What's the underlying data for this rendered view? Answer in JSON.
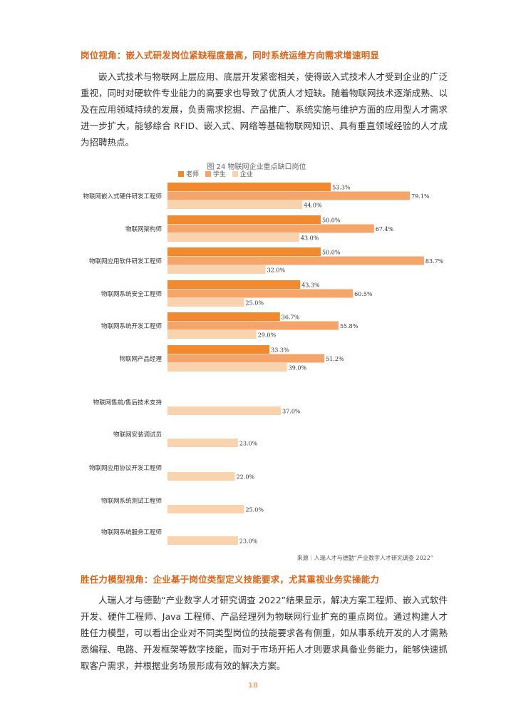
{
  "section1": {
    "heading": "岗位视角：嵌入式研发岗位紧缺程度最高，同时系统运维方向需求增速明显",
    "paragraph": "嵌入式技术与物联网上层应用、底层开发紧密相关，使得嵌入式技术人才受到企业的广泛重视，同时对硬软件专业能力的高要求也导致了优质人才短缺。随着物联网技术逐渐成熟、以及在应用领域持续的发展，负责需求挖掘、产品推广、系统实施与维护方面的应用型人才需求进一步扩大，能够综合 RFID、嵌入式、网络等基础物联网知识、具有垂直领域经验的人才成为招聘热点。"
  },
  "colors": {
    "teacher": "#f18a2e",
    "student": "#f5a46a",
    "company": "#f9d2ae",
    "accent": "#d9651b"
  },
  "chart_data": {
    "type": "bar",
    "orientation": "horizontal",
    "title": "图 24 物联网企业重点缺口岗位",
    "legend": [
      "老师",
      "学生",
      "企业"
    ],
    "categories": [
      "物联网嵌入式硬件研发工程师",
      "物联网架构师",
      "物联网应用软件研发工程师",
      "物联网系统安全工程师",
      "物联网系统开发工程师",
      "物联网产品经理",
      "物联网售前/售后技术支持",
      "物联网安装调试员",
      "物联网应用协议开发工程师",
      "物联网系统测试工程师",
      "物联网系统服务工程师"
    ],
    "series": [
      {
        "name": "老师",
        "values": [
          53.3,
          50.0,
          50.0,
          43.3,
          36.7,
          33.3,
          null,
          null,
          null,
          null,
          null
        ]
      },
      {
        "name": "学生",
        "values": [
          79.1,
          67.4,
          83.7,
          60.5,
          55.8,
          51.2,
          null,
          null,
          null,
          null,
          null
        ]
      },
      {
        "name": "企业",
        "values": [
          44.0,
          43.0,
          32.0,
          25.0,
          29.0,
          39.0,
          37.0,
          23.0,
          22.0,
          25.0,
          23.0
        ]
      }
    ],
    "value_labels": {
      "老师": [
        "53.3%",
        "50.0%",
        "50.0%",
        "43.3%",
        "36.7%",
        "33.3%",
        "",
        "",
        "",
        "",
        ""
      ],
      "学生": [
        "79.1%",
        "67.4%",
        "83.7%",
        "60.5%",
        "55.8%",
        "51.2%",
        "",
        "",
        "",
        "",
        ""
      ],
      "企业": [
        "44.0%",
        "43.0%",
        "32.0%",
        "25.0%",
        "29.0%",
        "39.0%",
        "37.0%",
        "23.0%",
        "22.0%",
        "25.0%",
        "23.0%"
      ]
    },
    "xlim": [
      0,
      100
    ],
    "source": "来源｜人瑞人才与德勤“产业数字人才研究调查 2022”"
  },
  "section2": {
    "heading": "胜任力模型视角：企业基于岗位类型定义技能要求，尤其重视业务实操能力",
    "paragraph": "人瑞人才与德勤“产业数字人才研究调查 2022”结果显示，解决方案工程师、嵌入式软件开发、硬件工程师、Java 工程师、产品经理列为物联网行业扩充的重点岗位。通过构建人才胜任力模型，可以看出企业对不同类型岗位的技能要求各有侧重，如从事系统开发的人才需熟悉编程、电路、开发框架等数字技能，而对于市场开拓人才则要求具备业务能力，能够快速抓取客户需求，并根据业务场景形成有效的解决方案。"
  },
  "page_number": "18"
}
